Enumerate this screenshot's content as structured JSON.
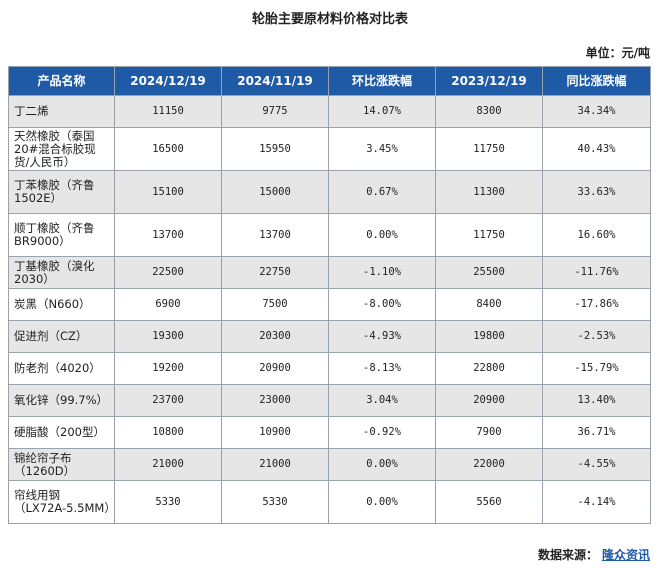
{
  "title": "轮胎主要原材料价格对比表",
  "unit": "单位：元/吨",
  "headers": [
    "产品名称",
    "2024/12/19",
    "2024/11/19",
    "环比涨跌幅",
    "2023/12/19",
    "同比涨跌幅"
  ],
  "rows": [
    {
      "name": "丁二烯",
      "c1": "11150",
      "c2": "9775",
      "mom": "14.07%",
      "c3": "8300",
      "yoy": "34.34%"
    },
    {
      "name": "天然橡胶（泰国20#混合标胶现货/人民币）",
      "c1": "16500",
      "c2": "15950",
      "mom": "3.45%",
      "c3": "11750",
      "yoy": "40.43%"
    },
    {
      "name": "丁苯橡胶（齐鲁1502E）",
      "c1": "15100",
      "c2": "15000",
      "mom": "0.67%",
      "c3": "11300",
      "yoy": "33.63%"
    },
    {
      "name": "顺丁橡胶（齐鲁BR9000）",
      "c1": "13700",
      "c2": "13700",
      "mom": "0.00%",
      "c3": "11750",
      "yoy": "16.60%"
    },
    {
      "name": "丁基橡胶（溴化2030）",
      "c1": "22500",
      "c2": "22750",
      "mom": "-1.10%",
      "c3": "25500",
      "yoy": "-11.76%"
    },
    {
      "name": "炭黑（N660）",
      "c1": "6900",
      "c2": "7500",
      "mom": "-8.00%",
      "c3": "8400",
      "yoy": "-17.86%"
    },
    {
      "name": "促进剂（CZ）",
      "c1": "19300",
      "c2": "20300",
      "mom": "-4.93%",
      "c3": "19800",
      "yoy": "-2.53%"
    },
    {
      "name": "防老剂（4020）",
      "c1": "19200",
      "c2": "20900",
      "mom": "-8.13%",
      "c3": "22800",
      "yoy": "-15.79%"
    },
    {
      "name": "氧化锌（99.7%）",
      "c1": "23700",
      "c2": "23000",
      "mom": "3.04%",
      "c3": "20900",
      "yoy": "13.40%"
    },
    {
      "name": "硬脂酸（200型）",
      "c1": "10800",
      "c2": "10900",
      "mom": "-0.92%",
      "c3": "7900",
      "yoy": "36.71%"
    },
    {
      "name": "锦纶帘子布（1260D）",
      "c1": "21000",
      "c2": "21000",
      "mom": "0.00%",
      "c3": "22000",
      "yoy": "-4.55%"
    },
    {
      "name": "帘线用钢（LX72A-5.5MM）",
      "c1": "5330",
      "c2": "5330",
      "mom": "0.00%",
      "c3": "5560",
      "yoy": "-4.14%"
    }
  ],
  "source_label": "数据来源：",
  "source_org": "隆众资讯"
}
